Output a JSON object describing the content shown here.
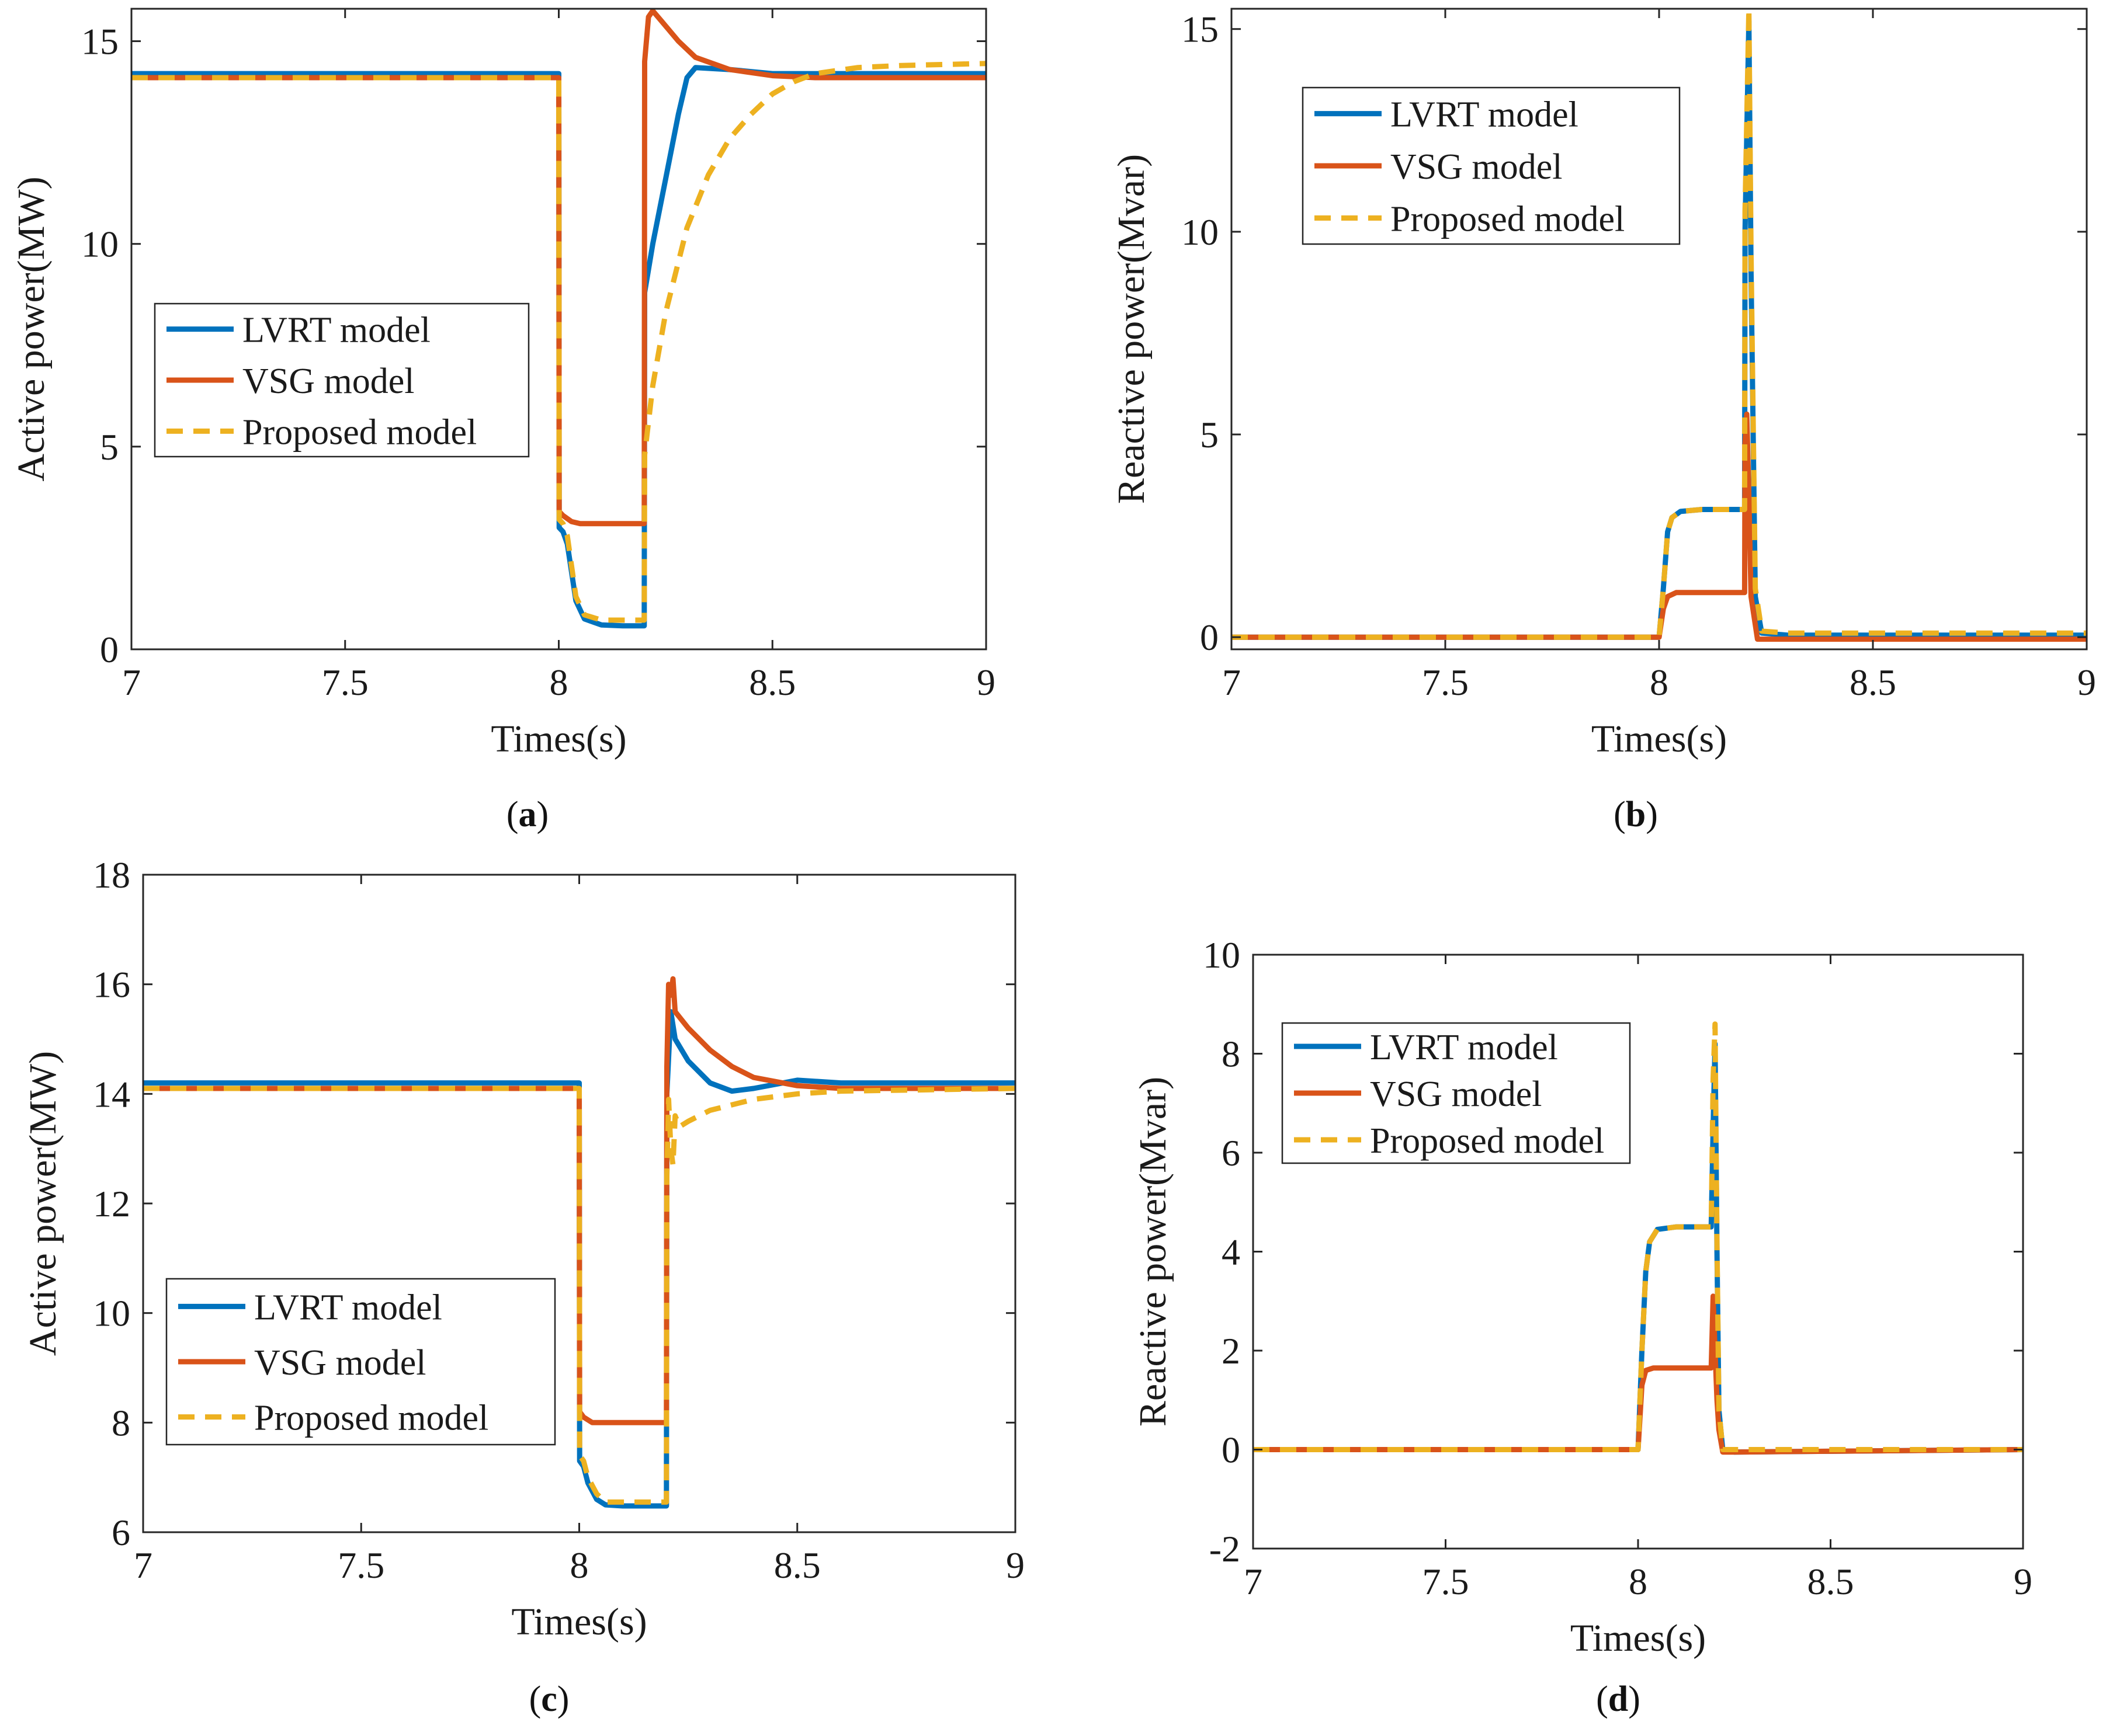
{
  "figure_title": "",
  "chart_data": [
    {
      "id": "a",
      "type": "line",
      "caption": "a",
      "xlabel": "Times(s)",
      "ylabel": "Active power(MW)",
      "xlim": [
        7,
        9
      ],
      "ylim": [
        0,
        15.8
      ],
      "xticks": [
        7,
        7.5,
        8,
        8.5,
        9
      ],
      "xtick_labels": [
        "7",
        "7.5",
        "8",
        "8.5",
        "9"
      ],
      "yticks": [
        0,
        5,
        10,
        15
      ],
      "ytick_labels": [
        "0",
        "5",
        "10",
        "15"
      ],
      "legend_position": "center-left",
      "series": [
        {
          "name": "LVRT model",
          "color": "#0072BD",
          "dash": "solid",
          "x": [
            7,
            8.0,
            8.001,
            8.01,
            8.02,
            8.04,
            8.06,
            8.1,
            8.15,
            8.2,
            8.201,
            8.22,
            8.25,
            8.28,
            8.3,
            8.32,
            8.4,
            8.5,
            8.6,
            9
          ],
          "y": [
            14.2,
            14.2,
            3.0,
            2.9,
            2.6,
            1.2,
            0.75,
            0.6,
            0.58,
            0.58,
            8.8,
            10.0,
            11.6,
            13.2,
            14.1,
            14.35,
            14.3,
            14.2,
            14.2,
            14.2
          ]
        },
        {
          "name": "VSG model",
          "color": "#D95319",
          "dash": "solid",
          "x": [
            7,
            8.0,
            8.001,
            8.01,
            8.03,
            8.05,
            8.1,
            8.2,
            8.201,
            8.21,
            8.22,
            8.24,
            8.28,
            8.32,
            8.4,
            8.5,
            8.6,
            9
          ],
          "y": [
            14.1,
            14.1,
            3.4,
            3.3,
            3.15,
            3.1,
            3.1,
            3.1,
            14.5,
            15.6,
            15.75,
            15.5,
            15.0,
            14.6,
            14.3,
            14.15,
            14.1,
            14.1
          ]
        },
        {
          "name": "Proposed model",
          "color": "#EDB120",
          "dash": "dashed",
          "x": [
            7,
            8.0,
            8.001,
            8.01,
            8.02,
            8.04,
            8.06,
            8.1,
            8.2,
            8.201,
            8.22,
            8.25,
            8.3,
            8.35,
            8.4,
            8.45,
            8.5,
            8.55,
            8.6,
            8.7,
            8.8,
            9
          ],
          "y": [
            14.1,
            14.1,
            3.2,
            3.1,
            2.8,
            1.3,
            0.85,
            0.72,
            0.72,
            4.8,
            6.5,
            8.3,
            10.4,
            11.7,
            12.6,
            13.2,
            13.7,
            14.0,
            14.2,
            14.35,
            14.4,
            14.45
          ]
        }
      ]
    },
    {
      "id": "b",
      "type": "line",
      "caption": "b",
      "xlabel": "Times(s)",
      "ylabel": "Reactive power(Mvar)",
      "xlim": [
        7,
        9
      ],
      "ylim": [
        -0.3,
        15.5
      ],
      "xticks": [
        7,
        7.5,
        8,
        8.5,
        9
      ],
      "xtick_labels": [
        "7",
        "7.5",
        "8",
        "8.5",
        "9"
      ],
      "yticks": [
        0,
        5,
        10,
        15
      ],
      "ytick_labels": [
        "0",
        "5",
        "10",
        "15"
      ],
      "legend_position": "top-left",
      "series": [
        {
          "name": "LVRT model",
          "color": "#0072BD",
          "dash": "solid",
          "x": [
            7,
            8.0,
            8.01,
            8.02,
            8.03,
            8.05,
            8.1,
            8.2,
            8.201,
            8.21,
            8.215,
            8.225,
            8.24,
            8.3,
            9
          ],
          "y": [
            0,
            0,
            1.2,
            2.6,
            2.95,
            3.1,
            3.15,
            3.15,
            10.0,
            15.2,
            9.0,
            1.0,
            0.1,
            0.05,
            0.05
          ]
        },
        {
          "name": "VSG model",
          "color": "#D95319",
          "dash": "solid",
          "x": [
            7,
            8.0,
            8.01,
            8.02,
            8.04,
            8.1,
            8.2,
            8.201,
            8.205,
            8.21,
            8.215,
            8.23,
            8.3,
            9
          ],
          "y": [
            0,
            0,
            0.7,
            1.0,
            1.1,
            1.1,
            1.1,
            4.8,
            5.5,
            3.5,
            1.0,
            -0.05,
            -0.05,
            -0.05
          ]
        },
        {
          "name": "Proposed model",
          "color": "#EDB120",
          "dash": "dashed",
          "x": [
            7,
            8.0,
            8.01,
            8.02,
            8.03,
            8.05,
            8.1,
            8.2,
            8.201,
            8.21,
            8.215,
            8.225,
            8.24,
            8.3,
            9
          ],
          "y": [
            0,
            0,
            1.2,
            2.6,
            2.95,
            3.1,
            3.15,
            3.15,
            10.5,
            15.5,
            9.5,
            1.2,
            0.15,
            0.1,
            0.1
          ]
        }
      ]
    },
    {
      "id": "c",
      "type": "line",
      "caption": "c",
      "xlabel": "Times(s)",
      "ylabel": "Active power(MW)",
      "xlim": [
        7,
        9
      ],
      "ylim": [
        6,
        18
      ],
      "xticks": [
        7,
        7.5,
        8,
        8.5,
        9
      ],
      "xtick_labels": [
        "7",
        "7.5",
        "8",
        "8.5",
        "9"
      ],
      "yticks": [
        6,
        8,
        10,
        12,
        14,
        16,
        18
      ],
      "ytick_labels": [
        "6",
        "8",
        "10",
        "12",
        "14",
        "16",
        "18"
      ],
      "legend_position": "bottom-left",
      "series": [
        {
          "name": "LVRT model",
          "color": "#0072BD",
          "dash": "solid",
          "x": [
            7,
            8.0,
            8.001,
            8.01,
            8.02,
            8.04,
            8.06,
            8.1,
            8.2,
            8.201,
            8.21,
            8.22,
            8.25,
            8.3,
            8.35,
            8.4,
            8.5,
            8.6,
            9
          ],
          "y": [
            14.2,
            14.2,
            7.3,
            7.2,
            6.9,
            6.6,
            6.5,
            6.48,
            6.48,
            14.0,
            15.5,
            15.0,
            14.6,
            14.2,
            14.05,
            14.1,
            14.25,
            14.2,
            14.2
          ]
        },
        {
          "name": "VSG model",
          "color": "#D95319",
          "dash": "solid",
          "x": [
            7,
            8.0,
            8.001,
            8.01,
            8.03,
            8.05,
            8.1,
            8.2,
            8.201,
            8.205,
            8.21,
            8.215,
            8.22,
            8.25,
            8.3,
            8.35,
            8.4,
            8.5,
            8.6,
            9
          ],
          "y": [
            14.1,
            14.1,
            8.2,
            8.1,
            8.0,
            8.0,
            8.0,
            8.0,
            14.5,
            16.0,
            15.8,
            16.1,
            15.5,
            15.2,
            14.8,
            14.5,
            14.3,
            14.15,
            14.1,
            14.1
          ]
        },
        {
          "name": "Proposed model",
          "color": "#EDB120",
          "dash": "dashed",
          "x": [
            7,
            8.0,
            8.001,
            8.01,
            8.02,
            8.04,
            8.06,
            8.1,
            8.2,
            8.201,
            8.205,
            8.21,
            8.215,
            8.22,
            8.23,
            8.25,
            8.3,
            8.4,
            8.5,
            8.6,
            9
          ],
          "y": [
            14.1,
            14.1,
            7.4,
            7.3,
            7.0,
            6.7,
            6.55,
            6.55,
            6.55,
            12.5,
            13.9,
            13.0,
            12.7,
            13.6,
            13.4,
            13.5,
            13.7,
            13.9,
            14.0,
            14.05,
            14.1
          ]
        }
      ]
    },
    {
      "id": "d",
      "type": "line",
      "caption": "d",
      "xlabel": "Times(s)",
      "ylabel": "Reactive power(Mvar)",
      "xlim": [
        7,
        9
      ],
      "ylim": [
        -2,
        10
      ],
      "xticks": [
        7,
        7.5,
        8,
        8.5,
        9
      ],
      "xtick_labels": [
        "7",
        "7.5",
        "8",
        "8.5",
        "9"
      ],
      "yticks": [
        -2,
        0,
        2,
        4,
        6,
        8,
        10
      ],
      "ytick_labels": [
        "-2",
        "0",
        "2",
        "4",
        "6",
        "8",
        "10"
      ],
      "legend_position": "top-left",
      "series": [
        {
          "name": "LVRT model",
          "color": "#0072BD",
          "dash": "solid",
          "x": [
            7,
            8.0,
            8.01,
            8.02,
            8.03,
            8.05,
            8.1,
            8.19,
            8.195,
            8.2,
            8.205,
            8.21,
            8.22,
            8.25,
            9
          ],
          "y": [
            0,
            0,
            2.0,
            3.6,
            4.2,
            4.45,
            4.5,
            4.5,
            6.5,
            8.2,
            4.0,
            0.8,
            0.0,
            -0.05,
            0
          ]
        },
        {
          "name": "VSG model",
          "color": "#D95319",
          "dash": "solid",
          "x": [
            7,
            8.0,
            8.01,
            8.02,
            8.04,
            8.1,
            8.19,
            8.195,
            8.2,
            8.205,
            8.21,
            8.22,
            8.25,
            9
          ],
          "y": [
            0,
            0,
            1.3,
            1.6,
            1.65,
            1.65,
            1.65,
            3.1,
            2.0,
            1.0,
            0.4,
            -0.05,
            -0.05,
            0
          ]
        },
        {
          "name": "Proposed model",
          "color": "#EDB120",
          "dash": "dashed",
          "x": [
            7,
            8.0,
            8.01,
            8.02,
            8.03,
            8.05,
            8.1,
            8.19,
            8.195,
            8.2,
            8.205,
            8.21,
            8.22,
            8.25,
            9
          ],
          "y": [
            0,
            0,
            2.0,
            3.6,
            4.2,
            4.45,
            4.5,
            4.5,
            7.5,
            8.6,
            4.2,
            0.8,
            0.0,
            0.0,
            0
          ]
        }
      ]
    }
  ]
}
